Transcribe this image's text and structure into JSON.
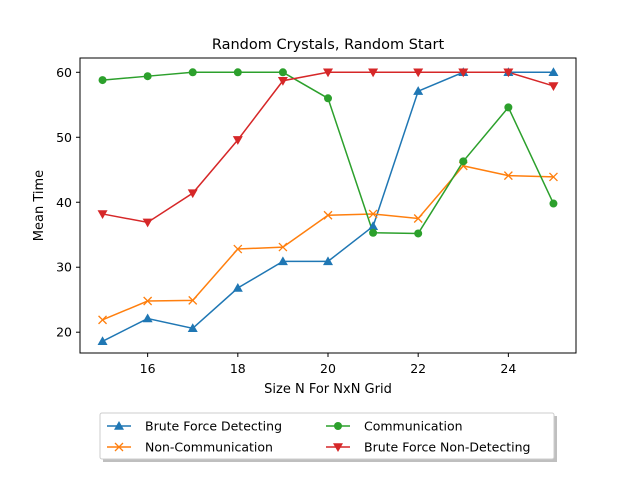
{
  "chart_data": {
    "type": "line",
    "title": "Random Crystals, Random Start",
    "xlabel": "Size N For NxN Grid",
    "ylabel": "Mean Time",
    "xlim": [
      14.5,
      25.5
    ],
    "ylim": [
      16.8,
      62.2
    ],
    "xticks": [
      16,
      18,
      20,
      22,
      24
    ],
    "yticks": [
      20,
      30,
      40,
      50,
      60
    ],
    "grid": false,
    "legend_placement": "below-center",
    "x": [
      15,
      16,
      17,
      18,
      19,
      20,
      21,
      22,
      23,
      24,
      25
    ],
    "series": [
      {
        "name": "Brute Force Detecting",
        "color": "#1f77b4",
        "marker": "triangle-up",
        "values": [
          18.6,
          22.1,
          20.6,
          26.8,
          30.9,
          30.9,
          36.3,
          57.1,
          60.0,
          60.0,
          60.0
        ]
      },
      {
        "name": "Non-Communication",
        "color": "#ff7f0e",
        "marker": "x",
        "values": [
          21.9,
          24.8,
          24.9,
          32.8,
          33.1,
          38.0,
          38.2,
          37.5,
          45.6,
          44.1,
          43.9
        ]
      },
      {
        "name": "Communication",
        "color": "#2ca02c",
        "marker": "circle",
        "values": [
          58.8,
          59.4,
          60.0,
          60.0,
          60.0,
          56.0,
          35.3,
          35.2,
          46.3,
          54.6,
          39.8
        ]
      },
      {
        "name": "Brute Force Non-Detecting",
        "color": "#d62728",
        "marker": "triangle-down",
        "values": [
          38.2,
          36.9,
          41.4,
          49.6,
          58.7,
          60.0,
          60.0,
          60.0,
          60.0,
          60.0,
          57.9
        ]
      }
    ]
  }
}
